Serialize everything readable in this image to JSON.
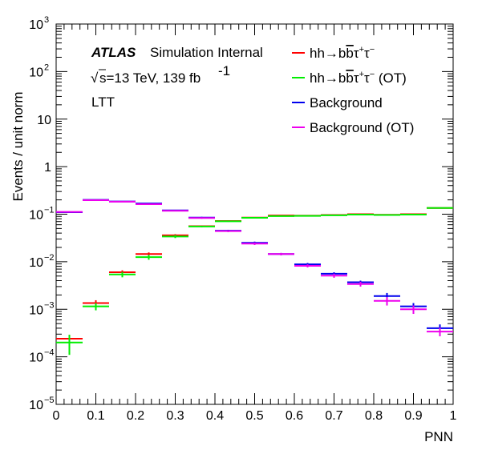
{
  "chart_data": {
    "type": "histogram",
    "xlabel": "PNN",
    "ylabel": "Events / unit norm",
    "xlim": [
      0,
      1
    ],
    "ylim": [
      1e-05,
      1000
    ],
    "yscale": "log",
    "grid": false,
    "legend_position": "top-right",
    "annotations": {
      "atlas": "ATLAS",
      "atlas_status": "Simulation Internal",
      "sqrt": "√",
      "energy": "s=13 TeV,  139 fb",
      "lumi_exp": "-1",
      "channel": "LTT"
    },
    "x_ticks": [
      {
        "v": 0,
        "label": "0"
      },
      {
        "v": 0.1,
        "label": "0.1"
      },
      {
        "v": 0.2,
        "label": "0.2"
      },
      {
        "v": 0.3,
        "label": "0.3"
      },
      {
        "v": 0.4,
        "label": "0.4"
      },
      {
        "v": 0.5,
        "label": "0.5"
      },
      {
        "v": 0.6,
        "label": "0.6"
      },
      {
        "v": 0.7,
        "label": "0.7"
      },
      {
        "v": 0.8,
        "label": "0.8"
      },
      {
        "v": 0.9,
        "label": "0.9"
      },
      {
        "v": 1,
        "label": "1"
      }
    ],
    "y_ticks": [
      {
        "exp": -5,
        "base": "10",
        "sup": "−5"
      },
      {
        "exp": -4,
        "base": "10",
        "sup": "−4"
      },
      {
        "exp": -3,
        "base": "10",
        "sup": "−3"
      },
      {
        "exp": -2,
        "base": "10",
        "sup": "−2"
      },
      {
        "exp": -1,
        "base": "10",
        "sup": "−1"
      },
      {
        "exp": 0,
        "base": "1",
        "sup": ""
      },
      {
        "exp": 1,
        "base": "10",
        "sup": ""
      },
      {
        "exp": 2,
        "base": "10",
        "sup": "2"
      },
      {
        "exp": 3,
        "base": "10",
        "sup": "3"
      }
    ],
    "bin_edges": [
      0,
      0.0667,
      0.1333,
      0.2,
      0.2667,
      0.3333,
      0.4,
      0.4667,
      0.5333,
      0.6,
      0.6667,
      0.7333,
      0.8,
      0.8667,
      0.9333,
      1.0
    ],
    "series": [
      {
        "name": "hh→bb̄τ⁺τ⁻",
        "legend_main": "hh→bb",
        "legend_sup": "+",
        "legend_sup2": "−",
        "legend_suffix": "",
        "color": "#ff0000",
        "values": [
          0.00024,
          0.00135,
          0.006,
          0.0145,
          0.036,
          0.056,
          0.072,
          0.085,
          0.094,
          0.093,
          0.096,
          0.1,
          0.097,
          0.1,
          0.135
        ],
        "errors": [
          5e-05,
          0.0002,
          0.0006,
          0.0012,
          0.002,
          0.002,
          0.002,
          0.002,
          0.002,
          0.002,
          0.002,
          0.002,
          0.002,
          0.002,
          0.002
        ]
      },
      {
        "name": "hh→bb̄τ⁺τ⁻ (OT)",
        "legend_main": "hh→bb",
        "legend_sup": "+",
        "legend_sup2": "−",
        "legend_suffix": " (OT)",
        "color": "#00ee00",
        "values": [
          0.0002,
          0.00115,
          0.0054,
          0.0125,
          0.034,
          0.055,
          0.071,
          0.084,
          0.091,
          0.092,
          0.095,
          0.098,
          0.096,
          0.098,
          0.135
        ],
        "errors": [
          9e-05,
          0.0002,
          0.0007,
          0.0015,
          0.0025,
          0.002,
          0.002,
          0.002,
          0.002,
          0.002,
          0.002,
          0.002,
          0.002,
          0.002,
          0.002
        ]
      },
      {
        "name": "Background",
        "legend_main": "Background",
        "legend_suffix": "",
        "color": "#0000ee",
        "values": [
          0.11,
          0.2,
          0.185,
          0.168,
          0.12,
          0.085,
          0.045,
          0.025,
          0.0145,
          0.0088,
          0.0056,
          0.0037,
          0.0019,
          0.00115,
          0.0004
        ],
        "errors": [
          0.003,
          0.004,
          0.004,
          0.004,
          0.003,
          0.003,
          0.002,
          0.0015,
          0.0008,
          0.0006,
          0.0004,
          0.0003,
          0.0003,
          0.0002,
          8e-05
        ]
      },
      {
        "name": "Background (OT)",
        "legend_main": "Background (OT)",
        "legend_suffix": "",
        "color": "#ee00ee",
        "values": [
          0.112,
          0.197,
          0.183,
          0.162,
          0.118,
          0.083,
          0.044,
          0.024,
          0.0145,
          0.0082,
          0.0051,
          0.0034,
          0.0015,
          0.001,
          0.00034
        ],
        "errors": [
          0.003,
          0.004,
          0.004,
          0.004,
          0.003,
          0.003,
          0.002,
          0.0015,
          0.0008,
          0.0006,
          0.0005,
          0.0004,
          0.0003,
          0.0002,
          7e-05
        ]
      }
    ]
  }
}
